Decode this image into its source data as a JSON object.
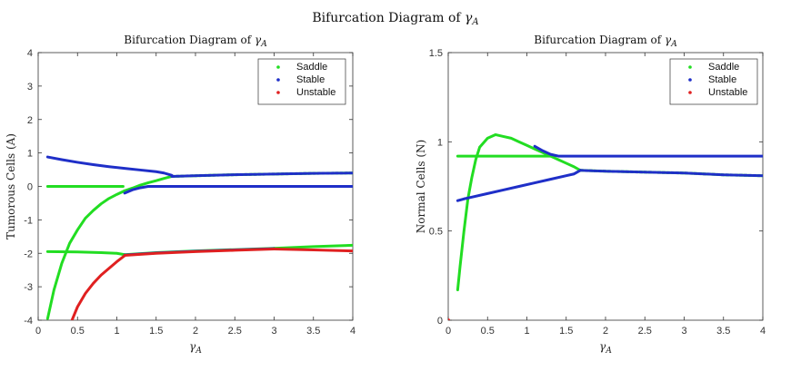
{
  "figure": {
    "suptitle": "Bifurcation Diagram of ",
    "suptitle_sym": "γ",
    "suptitle_sub": "A"
  },
  "chart_data": [
    {
      "type": "scatter",
      "title": "Bifurcation Diagram of ",
      "title_sym": "γ",
      "title_sub": "A",
      "xlabel_sym": "γ",
      "xlabel_sub": "A",
      "ylabel": "Tumorous Cells (A)",
      "xlim": [
        0,
        4
      ],
      "ylim": [
        -4,
        4
      ],
      "xticks": [
        0,
        0.5,
        1,
        1.5,
        2,
        2.5,
        3,
        3.5,
        4
      ],
      "yticks": [
        -4,
        -3,
        -2,
        -1,
        0,
        1,
        2,
        3,
        4
      ],
      "legend": "top-right",
      "series": [
        {
          "name": "Saddle",
          "color": "#22dd22",
          "segments": [
            [
              [
                0.12,
                0
              ],
              [
                0.5,
                0
              ],
              [
                1.0,
                0
              ],
              [
                1.08,
                0
              ]
            ],
            [
              [
                0.12,
                -3.95
              ],
              [
                0.2,
                -3.1
              ],
              [
                0.3,
                -2.3
              ],
              [
                0.4,
                -1.7
              ],
              [
                0.5,
                -1.3
              ],
              [
                0.6,
                -0.95
              ],
              [
                0.7,
                -0.72
              ],
              [
                0.8,
                -0.52
              ],
              [
                0.9,
                -0.36
              ],
              [
                1.0,
                -0.24
              ],
              [
                1.1,
                -0.13
              ],
              [
                1.2,
                -0.05
              ],
              [
                1.3,
                0.04
              ],
              [
                1.4,
                0.11
              ],
              [
                1.5,
                0.17
              ],
              [
                1.6,
                0.24
              ],
              [
                1.7,
                0.3
              ]
            ],
            [
              [
                1.7,
                0.3
              ],
              [
                2.0,
                0.32
              ],
              [
                2.5,
                0.35
              ],
              [
                3.0,
                0.37
              ],
              [
                3.5,
                0.39
              ],
              [
                4.0,
                0.4
              ]
            ],
            [
              [
                0.12,
                -1.95
              ],
              [
                0.5,
                -1.96
              ],
              [
                0.8,
                -1.98
              ],
              [
                1.0,
                -2.0
              ],
              [
                1.1,
                -2.04
              ]
            ],
            [
              [
                1.1,
                -2.04
              ],
              [
                1.5,
                -1.98
              ],
              [
                2.0,
                -1.93
              ],
              [
                2.5,
                -1.89
              ],
              [
                3.0,
                -1.85
              ]
            ],
            [
              [
                3.0,
                -1.85
              ],
              [
                3.5,
                -1.8
              ],
              [
                4.0,
                -1.76
              ]
            ]
          ]
        },
        {
          "name": "Stable",
          "color": "#1f2fc8",
          "segments": [
            [
              [
                0.12,
                0.88
              ],
              [
                0.3,
                0.8
              ],
              [
                0.5,
                0.72
              ],
              [
                0.7,
                0.65
              ],
              [
                0.9,
                0.59
              ],
              [
                1.1,
                0.54
              ],
              [
                1.3,
                0.49
              ],
              [
                1.5,
                0.44
              ],
              [
                1.6,
                0.4
              ],
              [
                1.7,
                0.33
              ]
            ],
            [
              [
                1.1,
                -0.2
              ],
              [
                1.2,
                -0.1
              ],
              [
                1.3,
                -0.04
              ],
              [
                1.4,
                0
              ],
              [
                2.0,
                0
              ],
              [
                3.0,
                0
              ],
              [
                4.0,
                0
              ]
            ],
            [
              [
                1.7,
                0.3
              ],
              [
                2.0,
                0.32
              ],
              [
                2.5,
                0.35
              ],
              [
                3.0,
                0.37
              ],
              [
                3.5,
                0.39
              ],
              [
                4.0,
                0.4
              ]
            ],
            [
              [
                1.1,
                -2.05
              ],
              [
                1.5,
                -1.99
              ],
              [
                2.0,
                -1.94
              ],
              [
                2.5,
                -1.9
              ],
              [
                3.0,
                -1.86
              ]
            ]
          ]
        },
        {
          "name": "Unstable",
          "color": "#e02020",
          "segments": [
            [
              [
                0.43,
                -4.0
              ],
              [
                0.5,
                -3.6
              ],
              [
                0.6,
                -3.2
              ],
              [
                0.7,
                -2.9
              ],
              [
                0.8,
                -2.65
              ],
              [
                0.9,
                -2.45
              ],
              [
                1.0,
                -2.25
              ],
              [
                1.1,
                -2.07
              ]
            ],
            [
              [
                1.1,
                -2.06
              ],
              [
                1.5,
                -2.0
              ],
              [
                2.0,
                -1.95
              ],
              [
                2.5,
                -1.91
              ],
              [
                3.0,
                -1.87
              ]
            ],
            [
              [
                3.0,
                -1.87
              ],
              [
                3.5,
                -1.9
              ],
              [
                4.0,
                -1.93
              ]
            ]
          ]
        }
      ]
    },
    {
      "type": "scatter",
      "title": "Bifurcation Diagram of ",
      "title_sym": "γ",
      "title_sub": "A",
      "xlabel_sym": "γ",
      "xlabel_sub": "A",
      "ylabel": "Normal Cells (N)",
      "xlim": [
        0,
        4
      ],
      "ylim": [
        0,
        1.5
      ],
      "xticks": [
        0,
        0.5,
        1,
        1.5,
        2,
        2.5,
        3,
        3.5,
        4
      ],
      "yticks": [
        0,
        0.5,
        1,
        1.5
      ],
      "legend": "top-right",
      "series": [
        {
          "name": "Saddle",
          "color": "#22dd22",
          "segments": [
            [
              [
                0.12,
                0.92
              ],
              [
                0.5,
                0.92
              ],
              [
                1.0,
                0.92
              ],
              [
                1.35,
                0.92
              ]
            ],
            [
              [
                0.12,
                0.17
              ],
              [
                0.15,
                0.3
              ],
              [
                0.2,
                0.5
              ],
              [
                0.25,
                0.68
              ],
              [
                0.3,
                0.8
              ],
              [
                0.35,
                0.9
              ],
              [
                0.4,
                0.97
              ],
              [
                0.5,
                1.02
              ],
              [
                0.6,
                1.04
              ],
              [
                0.7,
                1.03
              ],
              [
                0.8,
                1.02
              ],
              [
                0.9,
                1.0
              ],
              [
                1.0,
                0.98
              ],
              [
                1.1,
                0.96
              ],
              [
                1.2,
                0.94
              ],
              [
                1.3,
                0.92
              ],
              [
                1.4,
                0.9
              ],
              [
                1.5,
                0.88
              ],
              [
                1.6,
                0.86
              ],
              [
                1.68,
                0.84
              ]
            ],
            [
              [
                1.68,
                0.84
              ],
              [
                2.0,
                0.835
              ],
              [
                2.5,
                0.83
              ],
              [
                3.0,
                0.825
              ],
              [
                3.5,
                0.815
              ],
              [
                4.0,
                0.81
              ]
            ]
          ]
        },
        {
          "name": "Stable",
          "color": "#1f2fc8",
          "segments": [
            [
              [
                0.12,
                0.67
              ],
              [
                0.2,
                0.68
              ],
              [
                0.3,
                0.69
              ],
              [
                0.5,
                0.71
              ],
              [
                0.7,
                0.73
              ],
              [
                0.9,
                0.75
              ],
              [
                1.1,
                0.77
              ],
              [
                1.3,
                0.79
              ],
              [
                1.5,
                0.81
              ],
              [
                1.6,
                0.82
              ],
              [
                1.68,
                0.84
              ]
            ],
            [
              [
                1.1,
                0.975
              ],
              [
                1.2,
                0.95
              ],
              [
                1.3,
                0.93
              ],
              [
                1.4,
                0.92
              ],
              [
                2.0,
                0.92
              ],
              [
                3.0,
                0.92
              ],
              [
                4.0,
                0.92
              ]
            ],
            [
              [
                1.68,
                0.84
              ],
              [
                2.0,
                0.835
              ],
              [
                2.5,
                0.83
              ],
              [
                3.0,
                0.825
              ],
              [
                3.5,
                0.815
              ],
              [
                4.0,
                0.81
              ]
            ]
          ]
        },
        {
          "name": "Unstable",
          "color": "#e02020",
          "segments": [
            [
              [
                0.0,
                0.0
              ]
            ]
          ]
        }
      ]
    }
  ]
}
